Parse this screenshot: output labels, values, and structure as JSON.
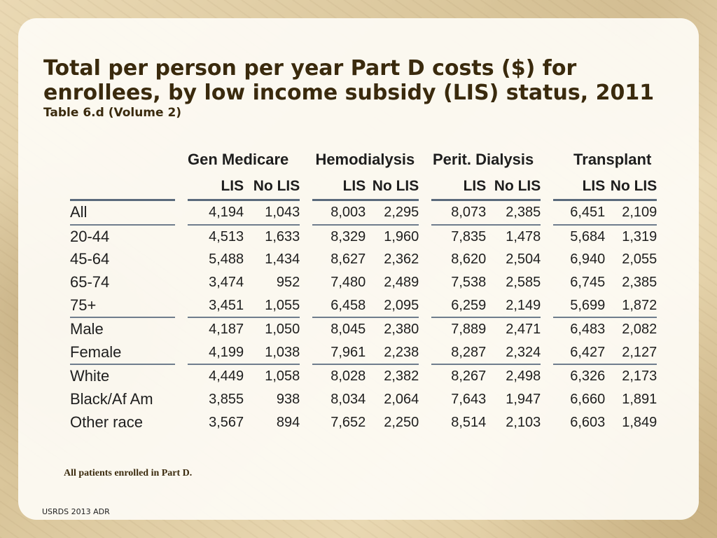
{
  "slide": {
    "title": "Total per person per year Part D costs ($) for enrollees, by low income subsidy (LIS) status, 2011",
    "subtitle": "Table 6.d (Volume 2)",
    "note": "All patients enrolled in Part D.",
    "footer": "USRDS 2013 ADR"
  },
  "table": {
    "groups": [
      "Gen Medicare",
      "Hemodialysis",
      "Perit. Dialysis",
      "Transplant"
    ],
    "sub_headers": [
      "LIS",
      "No LIS"
    ],
    "rows": [
      {
        "label": "All",
        "values": [
          "4,194",
          "1,043",
          "8,003",
          "2,295",
          "8,073",
          "2,385",
          "6,451",
          "2,109"
        ]
      },
      {
        "label": "20-44",
        "values": [
          "4,513",
          "1,633",
          "8,329",
          "1,960",
          "7,835",
          "1,478",
          "5,684",
          "1,319"
        ]
      },
      {
        "label": "45-64",
        "values": [
          "5,488",
          "1,434",
          "8,627",
          "2,362",
          "8,620",
          "2,504",
          "6,940",
          "2,055"
        ]
      },
      {
        "label": "65-74",
        "values": [
          "3,474",
          "952",
          "7,480",
          "2,489",
          "7,538",
          "2,585",
          "6,745",
          "2,385"
        ]
      },
      {
        "label": "75+",
        "values": [
          "3,451",
          "1,055",
          "6,458",
          "2,095",
          "6,259",
          "2,149",
          "5,699",
          "1,872"
        ]
      },
      {
        "label": "Male",
        "values": [
          "4,187",
          "1,050",
          "8,045",
          "2,380",
          "7,889",
          "2,471",
          "6,483",
          "2,082"
        ]
      },
      {
        "label": "Female",
        "values": [
          "4,199",
          "1,038",
          "7,961",
          "2,238",
          "8,287",
          "2,324",
          "6,427",
          "2,127"
        ]
      },
      {
        "label": "White",
        "values": [
          "4,449",
          "1,058",
          "8,028",
          "2,382",
          "8,267",
          "2,498",
          "6,326",
          "2,173"
        ]
      },
      {
        "label": "Black/Af Am",
        "values": [
          "3,855",
          "938",
          "8,034",
          "2,064",
          "7,643",
          "1,947",
          "6,660",
          "1,891"
        ]
      },
      {
        "label": "Other race",
        "values": [
          "3,567",
          "894",
          "7,652",
          "2,250",
          "8,514",
          "2,103",
          "6,603",
          "1,849"
        ]
      }
    ]
  },
  "colors": {
    "title": "#3a2a0d",
    "rule": "#5a6a7c",
    "panel": "#fdfbf4"
  }
}
